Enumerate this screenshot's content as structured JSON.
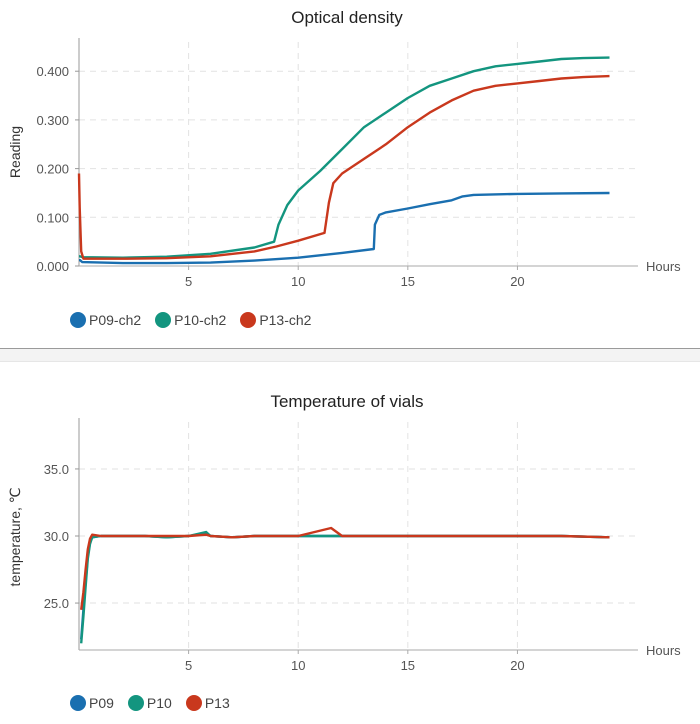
{
  "charts": [
    {
      "title": "Optical density",
      "ylabel": "Reading",
      "xlabel": "Hours",
      "ytick_labels": [
        "0.000",
        "0.100",
        "0.200",
        "0.300",
        "0.400"
      ],
      "xtick_labels": [
        "5",
        "10",
        "15",
        "20"
      ],
      "legend": [
        {
          "label": "P09-ch2",
          "color": "#1a6fb0"
        },
        {
          "label": "P10-ch2",
          "color": "#13957f"
        },
        {
          "label": "P13-ch2",
          "color": "#c9381d"
        }
      ]
    },
    {
      "title": "Temperature of vials",
      "ylabel": "temperature, ℃",
      "xlabel": "Hours",
      "ytick_labels": [
        "25.0",
        "30.0",
        "35.0"
      ],
      "xtick_labels": [
        "5",
        "10",
        "15",
        "20"
      ],
      "legend": [
        {
          "label": "P09",
          "color": "#1a6fb0"
        },
        {
          "label": "P10",
          "color": "#13957f"
        },
        {
          "label": "P13",
          "color": "#c9381d"
        }
      ]
    }
  ],
  "chart_data": [
    {
      "type": "line",
      "title": "Optical density",
      "xlabel": "Hours",
      "ylabel": "Reading",
      "xlim": [
        0,
        25.5
      ],
      "ylim": [
        0,
        0.46
      ],
      "xticks": [
        5,
        10,
        15,
        20
      ],
      "yticks": [
        0,
        0.1,
        0.2,
        0.3,
        0.4
      ],
      "grid": true,
      "legend_position": "bottom-left",
      "series": [
        {
          "name": "P09-ch2",
          "color": "#1a6fb0",
          "x": [
            0.0,
            0.05,
            0.15,
            2,
            4,
            6,
            8,
            10,
            12,
            13.45,
            13.5,
            13.7,
            14,
            15,
            16,
            17,
            17.5,
            18,
            20,
            22,
            24.2
          ],
          "y": [
            0.012,
            0.012,
            0.008,
            0.006,
            0.006,
            0.007,
            0.011,
            0.017,
            0.027,
            0.035,
            0.085,
            0.105,
            0.11,
            0.118,
            0.127,
            0.135,
            0.143,
            0.146,
            0.148,
            0.149,
            0.15
          ]
        },
        {
          "name": "P10-ch2",
          "color": "#13957f",
          "x": [
            0.0,
            0.05,
            0.15,
            2,
            4,
            6,
            8,
            8.9,
            9.1,
            9.5,
            10,
            11,
            12,
            13,
            14,
            15,
            16,
            17,
            18,
            19,
            20,
            21,
            22,
            23,
            24.2
          ],
          "y": [
            0.02,
            0.02,
            0.018,
            0.017,
            0.019,
            0.025,
            0.038,
            0.05,
            0.085,
            0.125,
            0.155,
            0.195,
            0.24,
            0.285,
            0.315,
            0.345,
            0.37,
            0.385,
            0.4,
            0.41,
            0.415,
            0.42,
            0.425,
            0.427,
            0.428
          ]
        },
        {
          "name": "P13-ch2",
          "color": "#c9381d",
          "x": [
            0.0,
            0.03,
            0.1,
            0.2,
            2,
            4,
            6,
            8,
            9,
            10,
            11.2,
            11.4,
            11.6,
            12,
            13,
            14,
            15,
            16,
            17,
            18,
            19,
            20,
            21,
            22,
            23,
            24.2
          ],
          "y": [
            0.19,
            0.12,
            0.03,
            0.015,
            0.015,
            0.016,
            0.02,
            0.03,
            0.04,
            0.052,
            0.068,
            0.13,
            0.17,
            0.19,
            0.22,
            0.25,
            0.285,
            0.315,
            0.34,
            0.36,
            0.37,
            0.375,
            0.38,
            0.385,
            0.388,
            0.39
          ]
        }
      ]
    },
    {
      "type": "line",
      "title": "Temperature of vials",
      "xlabel": "Hours",
      "ylabel": "temperature, ℃",
      "xlim": [
        0,
        25.5
      ],
      "ylim": [
        21.5,
        38.5
      ],
      "xticks": [
        5,
        10,
        15,
        20
      ],
      "yticks": [
        25,
        30,
        35
      ],
      "grid": true,
      "legend_position": "bottom-left",
      "series": [
        {
          "name": "P09",
          "color": "#1a6fb0",
          "x": [
            0.1,
            0.2,
            0.3,
            0.4,
            0.5,
            0.6,
            1,
            2,
            3,
            4,
            5,
            5.8,
            6,
            7,
            8,
            10,
            12,
            14,
            16,
            18,
            20,
            22,
            24.2
          ],
          "y": [
            22.3,
            24.5,
            26.5,
            28.5,
            29.5,
            29.9,
            30.0,
            30.0,
            30.0,
            29.9,
            30.0,
            30.2,
            30.0,
            29.9,
            30.0,
            30.0,
            30.0,
            30.0,
            30.0,
            30.0,
            30.0,
            30.0,
            29.9
          ]
        },
        {
          "name": "P10",
          "color": "#13957f",
          "x": [
            0.1,
            0.2,
            0.3,
            0.4,
            0.5,
            0.6,
            1,
            2,
            3,
            4,
            5,
            5.8,
            6,
            7,
            8,
            10,
            12,
            14,
            16,
            18,
            20,
            22,
            24.2
          ],
          "y": [
            22.0,
            24.0,
            26.2,
            28.3,
            29.4,
            29.9,
            30.0,
            30.0,
            30.0,
            29.9,
            30.0,
            30.3,
            30.0,
            29.9,
            30.0,
            30.0,
            30.0,
            30.0,
            30.0,
            30.0,
            30.0,
            30.0,
            29.9
          ]
        },
        {
          "name": "P13",
          "color": "#c9381d",
          "x": [
            0.1,
            0.2,
            0.3,
            0.4,
            0.5,
            0.6,
            1,
            2,
            3,
            4,
            5,
            5.8,
            6,
            7,
            8,
            10,
            11.5,
            12,
            14,
            16,
            18,
            20,
            22,
            24.2
          ],
          "y": [
            24.5,
            25.8,
            27.5,
            29.0,
            29.8,
            30.1,
            30.0,
            30.0,
            30.0,
            30.0,
            30.0,
            30.1,
            30.0,
            29.9,
            30.0,
            30.0,
            30.6,
            30.0,
            30.0,
            30.0,
            30.0,
            30.0,
            30.0,
            29.9
          ]
        }
      ]
    }
  ]
}
